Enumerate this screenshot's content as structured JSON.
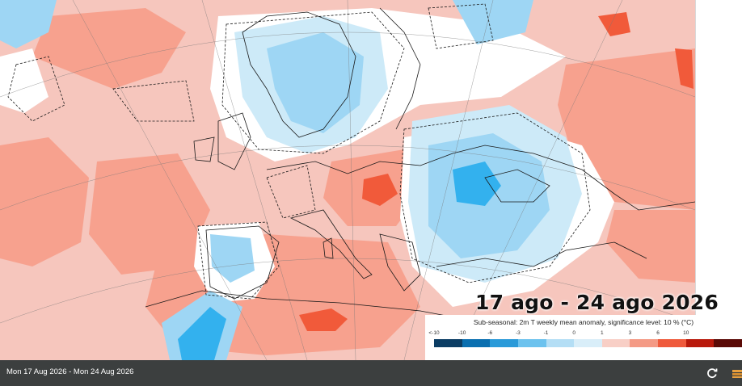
{
  "map": {
    "period_title": "17 ago - 24 ago 2026",
    "colors": {
      "ocean_warm": "#f6c6bd",
      "warm_1_3": "#f7a18e",
      "warm_3_6": "#f15a3a",
      "warm_6_10": "#c51d0c",
      "cold_0_1": "#cdeaf8",
      "cold_1_3": "#9ed6f4",
      "cold_3_6": "#33b1ee",
      "cold_6_10": "#0a78bd",
      "neutral": "#ffffff",
      "coastline": "#1a1a1a",
      "significance_contour": "#1a1a1a"
    }
  },
  "legend": {
    "caption": "Sub-seasonal: 2m T weekly mean anomaly, significance level: 10 % (°C)",
    "ticks": [
      "<-10",
      "-10",
      "-6",
      "-3",
      "-1",
      "0",
      "1",
      "3",
      "6",
      "10"
    ],
    "colors": [
      "#0b3d64",
      "#0a6fb0",
      "#2a9ad9",
      "#6cc2ee",
      "#b4def5",
      "#d9eef9",
      "#f8cfc6",
      "#f49a85",
      "#ef5a3c",
      "#b8190b",
      "#5a0a06"
    ]
  },
  "status_bar": {
    "date_range": "Mon 17 Aug 2026 - Mon 24 Aug 2026",
    "refresh_icon": "refresh-icon",
    "layers_icon": "layers-icon"
  }
}
